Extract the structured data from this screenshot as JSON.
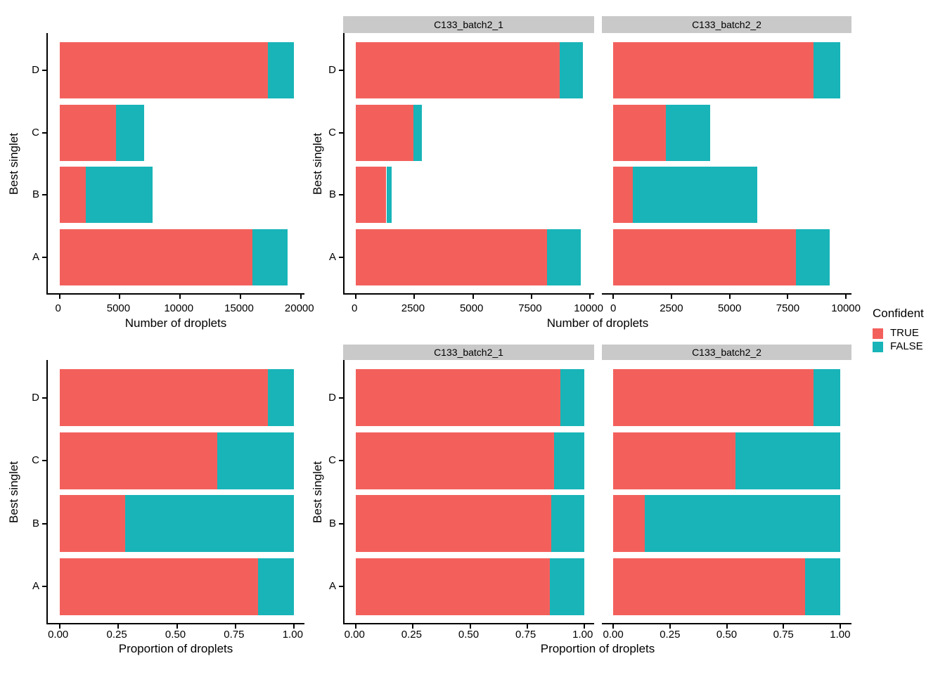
{
  "colors": {
    "true_fill": "#F3605C",
    "false_fill": "#18B4B8",
    "strip_bg": "#C9C9C9",
    "axis": "#000000"
  },
  "legend": {
    "title": "Confident",
    "items": [
      {
        "label": "TRUE",
        "color": "#F3605C"
      },
      {
        "label": "FALSE",
        "color": "#18B4B8"
      }
    ]
  },
  "axis_titles": {
    "count": "Number of droplets",
    "proportion": "Proportion of droplets",
    "y": "Best singlet"
  },
  "facet_labels": [
    "C133_batch2_1",
    "C133_batch2_2"
  ],
  "chart_data": [
    {
      "id": "count-combined",
      "type": "bar",
      "orientation": "horizontal",
      "stacked": true,
      "facet": null,
      "categories": [
        "D",
        "C",
        "B",
        "A"
      ],
      "category_order": "top-to-bottom",
      "series": [
        {
          "name": "TRUE",
          "color": "#F3605C",
          "values": [
            17300,
            4700,
            2150,
            16000
          ]
        },
        {
          "name": "FALSE",
          "color": "#18B4B8",
          "values": [
            2150,
            2300,
            5550,
            2900
          ]
        }
      ],
      "xlabel": "Number of droplets",
      "ylabel": "Best singlet",
      "xlim": [
        0,
        20000
      ],
      "xticks": [
        0,
        5000,
        10000,
        15000,
        20000
      ],
      "xtick_labels": [
        "0",
        "5000",
        "10000",
        "15000",
        "20000"
      ],
      "scale_max": 19450,
      "grid": false
    },
    {
      "id": "count-C133_batch2_1",
      "type": "bar",
      "orientation": "horizontal",
      "stacked": true,
      "facet": "C133_batch2_1",
      "categories": [
        "D",
        "C",
        "B",
        "A"
      ],
      "category_order": "top-to-bottom",
      "series": [
        {
          "name": "TRUE",
          "color": "#F3605C",
          "values": [
            8700,
            2450,
            1300,
            8150
          ]
        },
        {
          "name": "FALSE",
          "color": "#18B4B8",
          "values": [
            1000,
            370,
            220,
            1450
          ]
        }
      ],
      "xlabel": "Number of droplets",
      "ylabel": "Best singlet",
      "xlim": [
        0,
        10000
      ],
      "xticks": [
        0,
        2500,
        5000,
        7500,
        10000
      ],
      "xtick_labels": [
        "0",
        "2500",
        "5000",
        "7500",
        "10000"
      ],
      "scale_max": 9750,
      "grid": false
    },
    {
      "id": "count-C133_batch2_2",
      "type": "bar",
      "orientation": "horizontal",
      "stacked": true,
      "facet": "C133_batch2_2",
      "categories": [
        "D",
        "C",
        "B",
        "A"
      ],
      "category_order": "top-to-bottom",
      "series": [
        {
          "name": "TRUE",
          "color": "#F3605C",
          "values": [
            8600,
            2250,
            850,
            7850
          ]
        },
        {
          "name": "FALSE",
          "color": "#18B4B8",
          "values": [
            1150,
            1930,
            5330,
            1450
          ]
        }
      ],
      "xlabel": "Number of droplets",
      "ylabel": "Best singlet",
      "xlim": [
        0,
        10000
      ],
      "xticks": [
        0,
        2500,
        5000,
        7500,
        10000
      ],
      "xtick_labels": [
        "0",
        "2500",
        "5000",
        "7500",
        "10000"
      ],
      "scale_max": 9750,
      "grid": false
    },
    {
      "id": "proportion-combined",
      "type": "bar",
      "orientation": "horizontal",
      "stacked": true,
      "facet": null,
      "categories": [
        "D",
        "C",
        "B",
        "A"
      ],
      "category_order": "top-to-bottom",
      "series": [
        {
          "name": "TRUE",
          "color": "#F3605C",
          "values": [
            0.889,
            0.671,
            0.279,
            0.847
          ]
        },
        {
          "name": "FALSE",
          "color": "#18B4B8",
          "values": [
            0.111,
            0.329,
            0.721,
            0.153
          ]
        }
      ],
      "xlabel": "Proportion of droplets",
      "ylabel": "Best singlet",
      "xlim": [
        0,
        1
      ],
      "xticks": [
        0,
        0.25,
        0.5,
        0.75,
        1
      ],
      "xtick_labels": [
        "0.00",
        "0.25",
        "0.50",
        "0.75",
        "1.00"
      ],
      "scale_max": 1,
      "grid": false
    },
    {
      "id": "proportion-C133_batch2_1",
      "type": "bar",
      "orientation": "horizontal",
      "stacked": true,
      "facet": "C133_batch2_1",
      "categories": [
        "D",
        "C",
        "B",
        "A"
      ],
      "category_order": "top-to-bottom",
      "series": [
        {
          "name": "TRUE",
          "color": "#F3605C",
          "values": [
            0.897,
            0.869,
            0.855,
            0.849
          ]
        },
        {
          "name": "FALSE",
          "color": "#18B4B8",
          "values": [
            0.103,
            0.131,
            0.145,
            0.151
          ]
        }
      ],
      "xlabel": "Proportion of droplets",
      "ylabel": "Best singlet",
      "xlim": [
        0,
        1
      ],
      "xticks": [
        0,
        0.25,
        0.5,
        0.75,
        1
      ],
      "xtick_labels": [
        "0.00",
        "0.25",
        "0.50",
        "0.75",
        "1.00"
      ],
      "scale_max": 1,
      "grid": false
    },
    {
      "id": "proportion-C133_batch2_2",
      "type": "bar",
      "orientation": "horizontal",
      "stacked": true,
      "facet": "C133_batch2_2",
      "categories": [
        "D",
        "C",
        "B",
        "A"
      ],
      "category_order": "top-to-bottom",
      "series": [
        {
          "name": "TRUE",
          "color": "#F3605C",
          "values": [
            0.882,
            0.538,
            0.138,
            0.844
          ]
        },
        {
          "name": "FALSE",
          "color": "#18B4B8",
          "values": [
            0.118,
            0.462,
            0.862,
            0.156
          ]
        }
      ],
      "xlabel": "Proportion of droplets",
      "ylabel": "Best singlet",
      "xlim": [
        0,
        1
      ],
      "xticks": [
        0,
        0.25,
        0.5,
        0.75,
        1
      ],
      "xtick_labels": [
        "0.00",
        "0.25",
        "0.50",
        "0.75",
        "1.00"
      ],
      "scale_max": 1,
      "grid": false
    }
  ]
}
